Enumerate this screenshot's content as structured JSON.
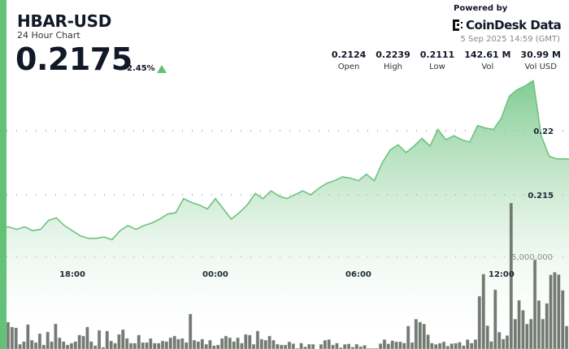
{
  "header": {
    "title": "HBAR-USD",
    "subtitle": "24 Hour Chart",
    "price": "0.2175",
    "change": "2.45%",
    "change_direction": "up",
    "powered_by": "Powered by",
    "brand": "CoinDesk Data",
    "timestamp": "5 Sep 2025 14:59 (GMT)"
  },
  "stats": [
    {
      "value": "0.2124",
      "label": "Open"
    },
    {
      "value": "0.2239",
      "label": "High"
    },
    {
      "value": "0.2111",
      "label": "Low"
    },
    {
      "value": "142.61 M",
      "label": "Vol"
    },
    {
      "value": "30.99 M",
      "label": "Vol USD"
    }
  ],
  "colors": {
    "accent": "#63c277",
    "line": "#6cc380",
    "volume_bar": "#5c635a"
  },
  "chart_data": {
    "type": "area",
    "x_ticks": [
      "18:00",
      "00:00",
      "06:00",
      "12:00"
    ],
    "y_ticks": [
      "0.215",
      "0.22"
    ],
    "y_tick_values": [
      0.215,
      0.22
    ],
    "volume_tick": "5,000,000",
    "volume_tick_value": 5000000,
    "grid": "dotted horizontal",
    "series": [
      {
        "type": "area",
        "times": [
          "15:20",
          "15:40",
          "16:00",
          "16:20",
          "16:40",
          "17:00",
          "17:20",
          "17:40",
          "18:00",
          "18:20",
          "18:40",
          "19:00",
          "19:20",
          "19:40",
          "20:00",
          "20:20",
          "20:40",
          "21:00",
          "21:20",
          "21:40",
          "22:00",
          "22:20",
          "22:40",
          "23:00",
          "23:20",
          "23:40",
          "00:00",
          "00:20",
          "00:40",
          "01:00",
          "01:20",
          "01:40",
          "02:00",
          "02:20",
          "02:40",
          "03:00",
          "03:20",
          "03:40",
          "04:00",
          "04:20",
          "04:40",
          "05:00",
          "05:20",
          "05:40",
          "06:00",
          "06:20",
          "06:40",
          "07:00",
          "07:20",
          "07:40",
          "08:00",
          "08:20",
          "08:40",
          "09:00",
          "09:20",
          "09:40",
          "10:00",
          "10:20",
          "10:40",
          "11:00",
          "11:20",
          "11:40",
          "12:00",
          "12:20",
          "12:40",
          "13:00",
          "13:20",
          "13:40",
          "14:00",
          "14:20"
        ],
        "values": [
          0.2125,
          0.2123,
          0.2125,
          0.2122,
          0.2123,
          0.213,
          0.2132,
          0.2126,
          0.2122,
          0.2118,
          0.2116,
          0.2116,
          0.2117,
          0.2115,
          0.2122,
          0.2126,
          0.2123,
          0.2126,
          0.2128,
          0.2131,
          0.2135,
          0.2136,
          0.2147,
          0.2144,
          0.2142,
          0.2139,
          0.2147,
          0.2139,
          0.2131,
          0.2136,
          0.2142,
          0.2151,
          0.2147,
          0.2153,
          0.2149,
          0.2147,
          0.215,
          0.2153,
          0.215,
          0.2155,
          0.2159,
          0.2161,
          0.2164,
          0.2163,
          0.2161,
          0.2166,
          0.2161,
          0.2175,
          0.2185,
          0.2189,
          0.2183,
          0.2188,
          0.2194,
          0.2188,
          0.2201,
          0.2193,
          0.2196,
          0.2193,
          0.2191,
          0.2204,
          0.2202,
          0.2201,
          0.221,
          0.2227,
          0.2232,
          0.2235,
          0.2239,
          0.2196,
          0.218,
          0.2178
        ]
      },
      {
        "type": "bar",
        "unit": "millions",
        "values": [
          1.45,
          1.19,
          1.14,
          0.26,
          0.4,
          1.32,
          0.48,
          0.35,
          0.83,
          0.22,
          0.92,
          0.4,
          1.36,
          0.61,
          0.4,
          0.22,
          0.31,
          0.4,
          0.75,
          0.7,
          1.19,
          0.4,
          0.18,
          1.01,
          0.09,
          0.97,
          0.44,
          0.31,
          0.79,
          1.05,
          0.57,
          0.31,
          0.31,
          0.75,
          0.35,
          0.35,
          0.57,
          0.31,
          0.31,
          0.44,
          0.4,
          0.61,
          0.7,
          0.53,
          0.57,
          0.35,
          1.89,
          0.48,
          0.4,
          0.53,
          0.26,
          0.48,
          0.18,
          0.22,
          0.57,
          0.7,
          0.61,
          0.4,
          0.61,
          0.31,
          0.79,
          0.75,
          0.26,
          0.97,
          0.53,
          0.48,
          0.7,
          0.48,
          0.26,
          0.22,
          0.22,
          0.39,
          0.29,
          0.04,
          0.32,
          0.12,
          0.26,
          0.25,
          0.0,
          0.25,
          0.47,
          0.51,
          0.22,
          0.32,
          0.07,
          0.25,
          0.28,
          0.1,
          0.26,
          0.13,
          0.2,
          0.04,
          0.04,
          0.04,
          0.29,
          0.51,
          0.28,
          0.45,
          0.39,
          0.39,
          0.32,
          1.24,
          0.35,
          1.62,
          1.45,
          1.35,
          0.77,
          0.32,
          0.25,
          0.31,
          0.39,
          0.16,
          0.29,
          0.31,
          0.37,
          0.18,
          0.51,
          0.32,
          0.51,
          2.85,
          4.05,
          1.26,
          0.41,
          3.2,
          0.91,
          0.54,
          0.73,
          7.89,
          1.62,
          2.63,
          2.09,
          1.35,
          1.62,
          4.81,
          2.62,
          1.62,
          2.46,
          4.01,
          4.15,
          4.02,
          3.17,
          1.24
        ]
      }
    ]
  }
}
